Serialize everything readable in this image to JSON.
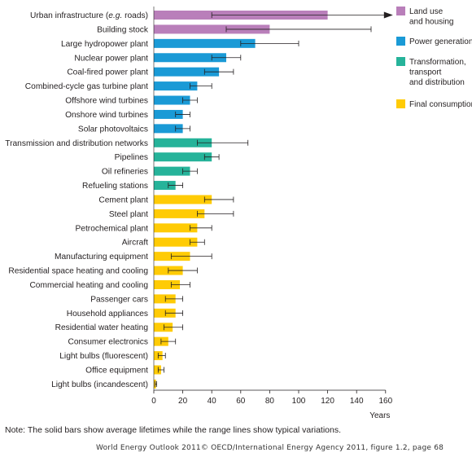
{
  "chart_data": {
    "type": "bar",
    "orientation": "horizontal",
    "xlabel": "Years",
    "xlim": [
      0,
      160
    ],
    "xticks": [
      0,
      20,
      40,
      60,
      80,
      100,
      120,
      140,
      160
    ],
    "grid": false,
    "legend_position": "right",
    "legend": [
      {
        "name": "Land use and housing",
        "lines": [
          "Land use",
          "and housing"
        ],
        "color": "#b97fba"
      },
      {
        "name": "Power generation",
        "lines": [
          "Power generation"
        ],
        "color": "#1a9ad6"
      },
      {
        "name": "Transformation, transport and distribution",
        "lines": [
          "Transformation,",
          "transport",
          "and distribution"
        ],
        "color": "#26b39a"
      },
      {
        "name": "Final consumption",
        "lines": [
          "Final consumption"
        ],
        "color": "#ffcb05"
      }
    ],
    "categories": [
      {
        "label": "Urban infrastructure (e.g. roads)",
        "label_parts": [
          "Urban infrastructure (",
          "e.g.",
          " roads)"
        ],
        "value": 120,
        "low": 40,
        "high": 160,
        "arrow": true,
        "group": 0
      },
      {
        "label": "Building stock",
        "value": 80,
        "low": 50,
        "high": 150,
        "group": 0
      },
      {
        "label": "Large hydropower plant",
        "value": 70,
        "low": 60,
        "high": 100,
        "group": 1
      },
      {
        "label": "Nuclear power plant",
        "value": 50,
        "low": 40,
        "high": 60,
        "group": 1
      },
      {
        "label": "Coal-fired power plant",
        "value": 45,
        "low": 35,
        "high": 55,
        "group": 1
      },
      {
        "label": "Combined-cycle gas turbine plant",
        "value": 30,
        "low": 25,
        "high": 40,
        "group": 1
      },
      {
        "label": "Offshore wind turbines",
        "value": 25,
        "low": 20,
        "high": 30,
        "group": 1
      },
      {
        "label": "Onshore wind turbines",
        "value": 20,
        "low": 15,
        "high": 25,
        "group": 1
      },
      {
        "label": "Solar photovoltaics",
        "value": 20,
        "low": 15,
        "high": 25,
        "group": 1
      },
      {
        "label": "Transmission and distribution networks",
        "value": 40,
        "low": 30,
        "high": 65,
        "group": 2
      },
      {
        "label": "Pipelines",
        "value": 40,
        "low": 35,
        "high": 45,
        "group": 2
      },
      {
        "label": "Oil refineries",
        "value": 25,
        "low": 20,
        "high": 30,
        "group": 2
      },
      {
        "label": "Refueling stations",
        "value": 15,
        "low": 10,
        "high": 20,
        "group": 2
      },
      {
        "label": "Cement plant",
        "value": 40,
        "low": 35,
        "high": 55,
        "group": 3
      },
      {
        "label": "Steel plant",
        "value": 35,
        "low": 30,
        "high": 55,
        "group": 3
      },
      {
        "label": "Petrochemical plant",
        "value": 30,
        "low": 25,
        "high": 40,
        "group": 3
      },
      {
        "label": "Aircraft",
        "value": 30,
        "low": 25,
        "high": 35,
        "group": 3
      },
      {
        "label": "Manufacturing equipment",
        "value": 25,
        "low": 12,
        "high": 40,
        "group": 3
      },
      {
        "label": "Residential space heating and cooling",
        "value": 20,
        "low": 10,
        "high": 30,
        "group": 3
      },
      {
        "label": "Commercial heating and cooling",
        "value": 18,
        "low": 12,
        "high": 25,
        "group": 3
      },
      {
        "label": "Passenger cars",
        "value": 15,
        "low": 8,
        "high": 20,
        "group": 3
      },
      {
        "label": "Household appliances",
        "value": 15,
        "low": 8,
        "high": 20,
        "group": 3
      },
      {
        "label": "Residential water heating",
        "value": 13,
        "low": 7,
        "high": 20,
        "group": 3
      },
      {
        "label": "Consumer electronics",
        "value": 10,
        "low": 5,
        "high": 15,
        "group": 3
      },
      {
        "label": "Light bulbs (fluorescent)",
        "value": 6,
        "low": 3,
        "high": 8,
        "group": 3
      },
      {
        "label": "Office equipment",
        "value": 5,
        "low": 3,
        "high": 7,
        "group": 3
      },
      {
        "label": "Light bulbs (incandescent)",
        "value": 1.5,
        "low": 1,
        "high": 2,
        "group": 3
      }
    ]
  },
  "note": "Note: The solid bars show average lifetimes while the range lines show typical variations.",
  "source": "World Energy Outlook 2011© OECD/International Energy Agency 2011, figure 1.2, page 68"
}
